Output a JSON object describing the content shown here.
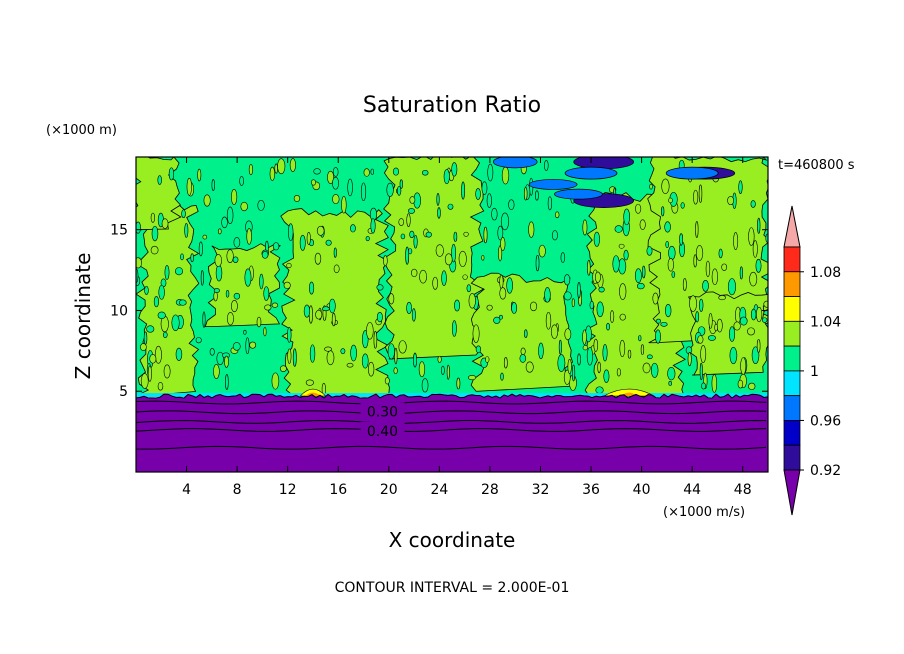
{
  "chart_data": {
    "type": "heatmap",
    "title": "Saturation Ratio",
    "xlabel": "X coordinate",
    "ylabel": "Z coordinate",
    "x_unit": "(×1000 m/s)",
    "y_unit": "(×1000 m)",
    "time_label": "t=460800 s",
    "footer": "CONTOUR INTERVAL = 2.000E-01",
    "xlim": [
      0,
      50
    ],
    "ylim": [
      0,
      19.5
    ],
    "x_ticks": [
      4,
      8,
      12,
      16,
      20,
      24,
      28,
      32,
      36,
      40,
      44,
      48
    ],
    "y_ticks": [
      5,
      10,
      15
    ],
    "contour_labels": [
      "0.30",
      "0.40"
    ],
    "colorbar": {
      "labels": [
        "1.08",
        "1.04",
        "1",
        "0.96",
        "0.92"
      ],
      "levels": [
        {
          "color": "#f4a9a8"
        },
        {
          "color": "#ff2a1a"
        },
        {
          "color": "#ff9900"
        },
        {
          "color": "#ffff00"
        },
        {
          "color": "#99ee22"
        },
        {
          "color": "#00f08c"
        },
        {
          "color": "#00e4ff"
        },
        {
          "color": "#0077ff"
        },
        {
          "color": "#0000c8"
        },
        {
          "color": "#2f0d9a"
        },
        {
          "color": "#7700aa"
        }
      ]
    },
    "regions": [
      {
        "desc": "lower layer",
        "value": "< 0.92",
        "x": [
          0,
          50
        ],
        "z": [
          0,
          4.7
        ]
      },
      {
        "desc": "green patch",
        "value": "1 - 1.04",
        "x": [
          12,
          19
        ],
        "z": [
          4.7,
          16
        ]
      },
      {
        "desc": "green patch",
        "value": "1 - 1.04",
        "x": [
          36,
          43
        ],
        "z": [
          4.7,
          17
        ]
      },
      {
        "desc": "yellow peak",
        "value": "1.04 - 1.08",
        "x": [
          13,
          15
        ],
        "z": [
          4.7,
          5
        ]
      },
      {
        "desc": "yellow peak",
        "value": "1.04 - 1.08",
        "x": [
          37,
          41
        ],
        "z": [
          4.7,
          5
        ]
      }
    ]
  }
}
